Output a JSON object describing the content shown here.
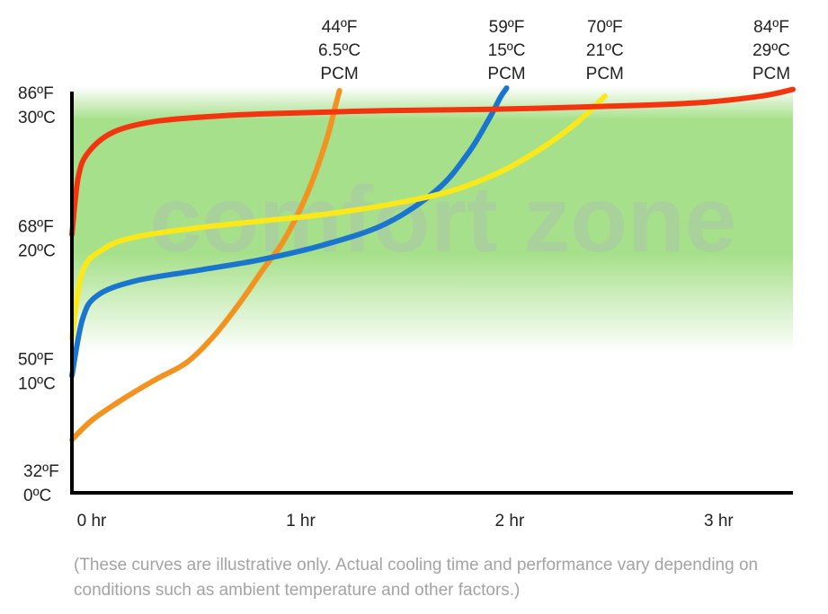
{
  "chart_data": {
    "type": "line",
    "title": "",
    "xlabel": "",
    "ylabel": "",
    "watermark": "comfort zone",
    "x_unit": "hr",
    "xlim": [
      0,
      3.45
    ],
    "ylim": [
      0,
      30
    ],
    "x_ticks": [
      {
        "value": 0,
        "label": "0 hr"
      },
      {
        "value": 1,
        "label": "1 hr"
      },
      {
        "value": 2,
        "label": "2 hr"
      },
      {
        "value": 3,
        "label": "3 hr"
      }
    ],
    "y_ticks": [
      {
        "value": 30,
        "f": "86ºF",
        "c": "30ºC"
      },
      {
        "value": 20,
        "f": "68ºF",
        "c": "20ºC"
      },
      {
        "value": 10,
        "f": "50ºF",
        "c": "10ºC"
      },
      {
        "value": 0,
        "f": "32ºF",
        "c": "0ºC"
      }
    ],
    "comfort_zone": {
      "from": 10.5,
      "peak_from": 18,
      "peak_to": 28,
      "to": 30.5,
      "color": "#a6e08a"
    },
    "series": [
      {
        "label_lines": [
          "44ºF",
          "6.5ºC",
          "PCM"
        ],
        "color": "#f2921f",
        "points": [
          [
            0,
            4
          ],
          [
            0.1,
            5.5
          ],
          [
            0.25,
            7.1
          ],
          [
            0.4,
            8.5
          ],
          [
            0.55,
            9.8
          ],
          [
            0.68,
            11.8
          ],
          [
            0.8,
            14.2
          ],
          [
            0.92,
            16.9
          ],
          [
            1.0,
            18.6
          ],
          [
            1.08,
            20.9
          ],
          [
            1.15,
            23.4
          ],
          [
            1.22,
            26.6
          ],
          [
            1.26,
            29.0
          ],
          [
            1.28,
            30.2
          ]
        ]
      },
      {
        "label_lines": [
          "59ºF",
          "15ºC",
          "PCM"
        ],
        "color": "#1a75cf",
        "points": [
          [
            0,
            8.8
          ],
          [
            0.05,
            13
          ],
          [
            0.12,
            14.8
          ],
          [
            0.3,
            15.9
          ],
          [
            0.6,
            16.7
          ],
          [
            0.9,
            17.5
          ],
          [
            1.2,
            18.6
          ],
          [
            1.5,
            20.2
          ],
          [
            1.75,
            22.8
          ],
          [
            1.9,
            25.6
          ],
          [
            2.0,
            28.2
          ],
          [
            2.05,
            29.7
          ],
          [
            2.08,
            30.4
          ]
        ]
      },
      {
        "label_lines": [
          "70ºF",
          "21ºC",
          "PCM"
        ],
        "color": "#fbe81a",
        "points": [
          [
            0,
            11.6
          ],
          [
            0.05,
            16.6
          ],
          [
            0.15,
            18.3
          ],
          [
            0.3,
            19.2
          ],
          [
            0.6,
            19.9
          ],
          [
            0.9,
            20.4
          ],
          [
            1.2,
            20.9
          ],
          [
            1.5,
            21.6
          ],
          [
            1.8,
            22.6
          ],
          [
            2.05,
            24.1
          ],
          [
            2.25,
            25.9
          ],
          [
            2.4,
            27.6
          ],
          [
            2.5,
            29.0
          ],
          [
            2.55,
            29.8
          ]
        ]
      },
      {
        "label_lines": [
          "84ºF",
          "29ºC",
          "PCM"
        ],
        "color": "#f2350f",
        "points": [
          [
            0,
            19.4
          ],
          [
            0.03,
            23.7
          ],
          [
            0.08,
            25.6
          ],
          [
            0.2,
            27.1
          ],
          [
            0.4,
            27.9
          ],
          [
            0.7,
            28.3
          ],
          [
            1.0,
            28.5
          ],
          [
            1.5,
            28.7
          ],
          [
            2.0,
            28.8
          ],
          [
            2.5,
            29.0
          ],
          [
            3.0,
            29.3
          ],
          [
            3.3,
            29.8
          ],
          [
            3.45,
            30.3
          ]
        ]
      }
    ],
    "footnote": "(These curves are illustrative only. Actual cooling time and performance vary depending on conditions such as ambient temperature and other factors.)"
  }
}
